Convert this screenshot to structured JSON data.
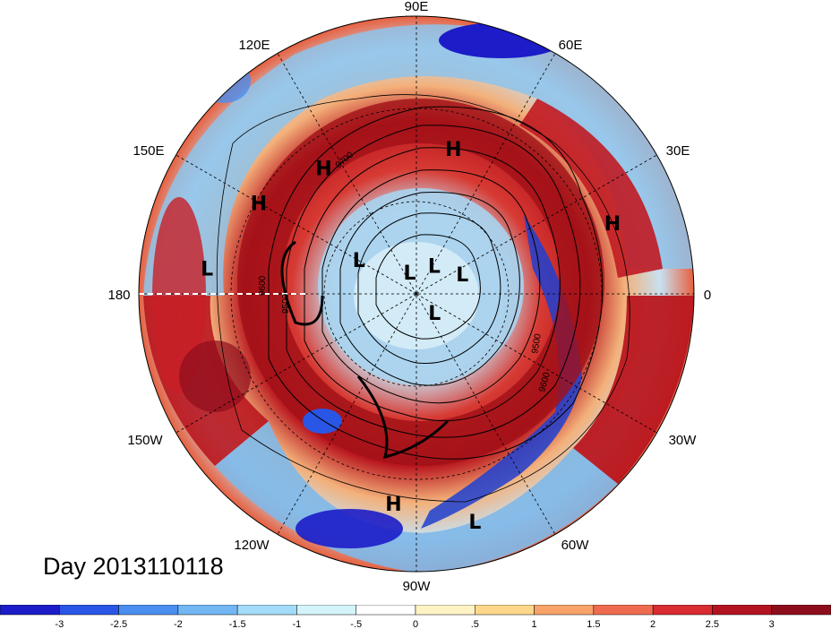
{
  "title": "Day 2013110118",
  "longitude_labels": [
    "90E",
    "60E",
    "30E",
    "0",
    "30W",
    "60W",
    "90W",
    "120W",
    "150W",
    "180",
    "150E",
    "120E"
  ],
  "pressure_systems": [
    {
      "type": "H",
      "lon_deg": 128,
      "lat_deg": 52
    },
    {
      "type": "H",
      "lon_deg": 75,
      "lat_deg": 54
    },
    {
      "type": "H",
      "lon_deg": 18,
      "lat_deg": 38
    },
    {
      "type": "H",
      "lon_deg": 152,
      "lat_deg": 45
    },
    {
      "type": "L",
      "lon_deg": 175,
      "lat_deg": 37
    },
    {
      "type": "L",
      "lon_deg": 155,
      "lat_deg": 74
    },
    {
      "type": "L",
      "lon_deg": 115,
      "lat_deg": 86
    },
    {
      "type": "L",
      "lon_deg": 50,
      "lat_deg": 83
    },
    {
      "type": "L",
      "lon_deg": 15,
      "lat_deg": 78
    },
    {
      "type": "L",
      "lon_deg": -55,
      "lat_deg": 82
    },
    {
      "type": "H",
      "lon_deg": -96,
      "lat_deg": 35
    },
    {
      "type": "L",
      "lon_deg": -76,
      "lat_deg": 29
    }
  ],
  "contour_labels": [
    "9500",
    "9600",
    "9700",
    "9600",
    "9500"
  ],
  "colorbar": {
    "ticks": [
      "-3",
      "-2.5",
      "-2",
      "-1.5",
      "-1",
      "-.5",
      "0",
      ".5",
      "1",
      "1.5",
      "2",
      "2.5",
      "3"
    ],
    "colors": [
      "#1c1cc8",
      "#2a56e6",
      "#4a8ff0",
      "#73b6f4",
      "#a3dcf8",
      "#d4f4fb",
      "#ffffff",
      "#fff3c6",
      "#fdd88a",
      "#f7a369",
      "#ef6b4f",
      "#d92b32",
      "#b31320",
      "#8e0d1c"
    ]
  }
}
